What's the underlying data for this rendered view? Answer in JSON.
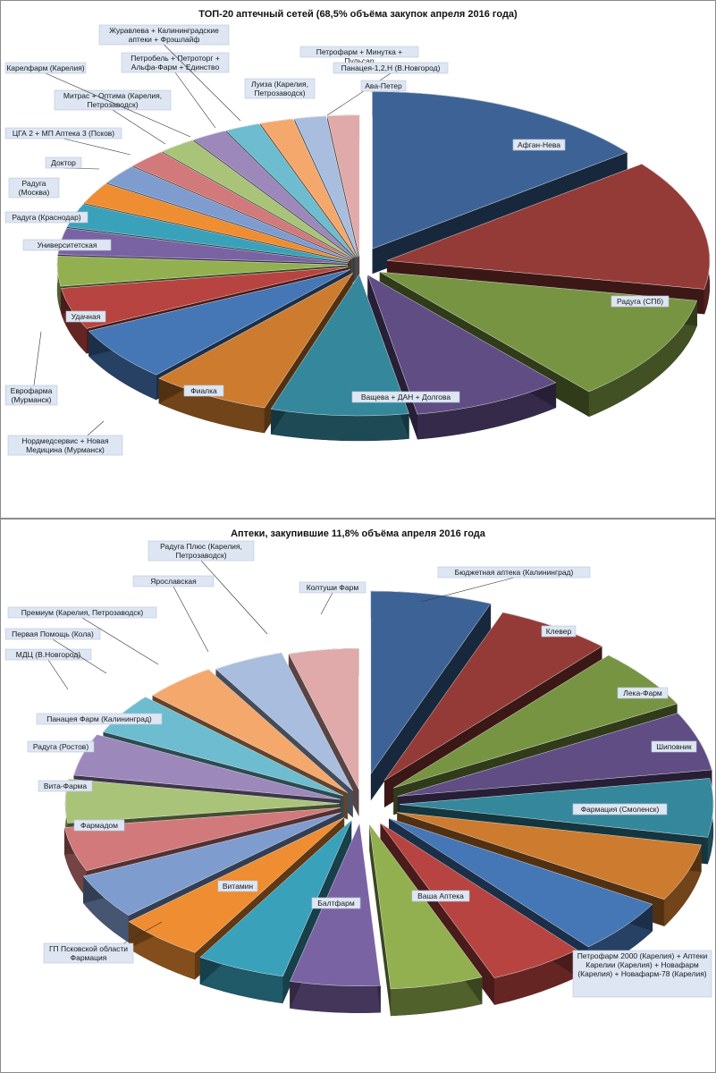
{
  "chart_data": [
    {
      "type": "pie",
      "title": "ТОП-20 аптечный сетей (68,5% объёма закупок апреля 2016 года)",
      "slices": [
        {
          "label": "Афган-Нева",
          "value": 14.0,
          "color": "#3d6396"
        },
        {
          "label": "Радуга (СПб)",
          "value": 13.0,
          "color": "#943b38"
        },
        {
          "label": "Ващева + ДАН + Долгова",
          "value": 10.5,
          "color": "#779442"
        },
        {
          "label": "Фиалка",
          "value": 8.2,
          "color": "#604d84"
        },
        {
          "label": "Нордмедсервис + Новая Медицина (Мурманск)",
          "value": 7.4,
          "color": "#35879b"
        },
        {
          "label": "Еврофарма (Мурманск)",
          "value": 6.5,
          "color": "#cd7b2f"
        },
        {
          "label": "Удачная",
          "value": 6.0,
          "color": "#4576b5"
        },
        {
          "label": "Университетская",
          "value": 4.6,
          "color": "#b74440"
        },
        {
          "label": "Радуга (Краснодар)",
          "value": 3.3,
          "color": "#92b050"
        },
        {
          "label": "Радуга (Москва)",
          "value": 2.9,
          "color": "#7a63a3"
        },
        {
          "label": "Доктор",
          "value": 2.6,
          "color": "#3aa1bb"
        },
        {
          "label": "ЦГА 2 + МП Аптека 3 (Псков)",
          "value": 2.4,
          "color": "#ee8d31"
        },
        {
          "label": "Митрас + Оптима (Карелия, Петрозаводск)",
          "value": 2.2,
          "color": "#7f9ccf"
        },
        {
          "label": "Карелфарм (Карелия)",
          "value": 2.1,
          "color": "#d2797b"
        },
        {
          "label": "Петробель + Петроторг + Альфа-Фарм + Единство",
          "value": 2.0,
          "color": "#a9c479"
        },
        {
          "label": "Журавлева + Калининградские аптеки + Фрэшлайф",
          "value": 1.9,
          "color": "#9c88ba"
        },
        {
          "label": "Луиза (Карелия, Петрозаводск)",
          "value": 1.9,
          "color": "#6dbcd0"
        },
        {
          "label": "Петрофарм + Минутка + Пульсар",
          "value": 1.8,
          "color": "#f5a86c"
        },
        {
          "label": "Панацея-1,2,Н (В.Новгород)",
          "value": 1.7,
          "color": "#a9bdde"
        },
        {
          "label": "Ава-Петер",
          "value": 1.7,
          "color": "#dfaaa9"
        }
      ]
    },
    {
      "type": "pie",
      "title": "Аптеки, закупившие 11,8% объёма апреля 2016 года",
      "slices": [
        {
          "label": "Бюджетная аптека (Калининград)",
          "value": 6.0,
          "color": "#3d6396"
        },
        {
          "label": "Клевер",
          "value": 5.8,
          "color": "#943b38"
        },
        {
          "label": "Лека-Фарм",
          "value": 5.6,
          "color": "#779442"
        },
        {
          "label": "Шиповник",
          "value": 5.5,
          "color": "#604d84"
        },
        {
          "label": "Фармация (Смоленск)",
          "value": 5.5,
          "color": "#35879b"
        },
        {
          "label": "Петрофарм 2000 (Карелия) + Аптеки Карелии (Карелия) + Новафарм (Карелия) + Новафарм-78 (Карелия)",
          "value": 5.5,
          "color": "#cd7b2f"
        },
        {
          "label": "Ваша Аптека",
          "value": 5.3,
          "color": "#4576b5"
        },
        {
          "label": "Балтфарм",
          "value": 5.2,
          "color": "#b74440"
        },
        {
          "label": "Витамин",
          "value": 5.1,
          "color": "#92b050"
        },
        {
          "label": "ГП Псковской области Фармация",
          "value": 5.0,
          "color": "#7a63a3"
        },
        {
          "label": "Фармадом",
          "value": 5.0,
          "color": "#3aa1bb"
        },
        {
          "label": "Вита-Фарма",
          "value": 4.9,
          "color": "#ee8d31"
        },
        {
          "label": "Радуга (Ростов)",
          "value": 4.8,
          "color": "#7f9ccf"
        },
        {
          "label": "Панацея Фарм (Калининград)",
          "value": 4.7,
          "color": "#d2797b"
        },
        {
          "label": "МДЦ (В.Новгород)",
          "value": 4.7,
          "color": "#a9c479"
        },
        {
          "label": "Первая Помощь (Кола)",
          "value": 4.6,
          "color": "#9c88ba"
        },
        {
          "label": "Премиум (Карелия, Петрозаводск)",
          "value": 4.6,
          "color": "#6dbcd0"
        },
        {
          "label": "Ярославская",
          "value": 4.5,
          "color": "#f5a86c"
        },
        {
          "label": "Радуга Плюс (Карелия, Петрозаводск)",
          "value": 4.5,
          "color": "#a9bdde"
        },
        {
          "label": "Колтуши Фарм",
          "value": 4.5,
          "color": "#dfaaa9"
        }
      ]
    }
  ]
}
